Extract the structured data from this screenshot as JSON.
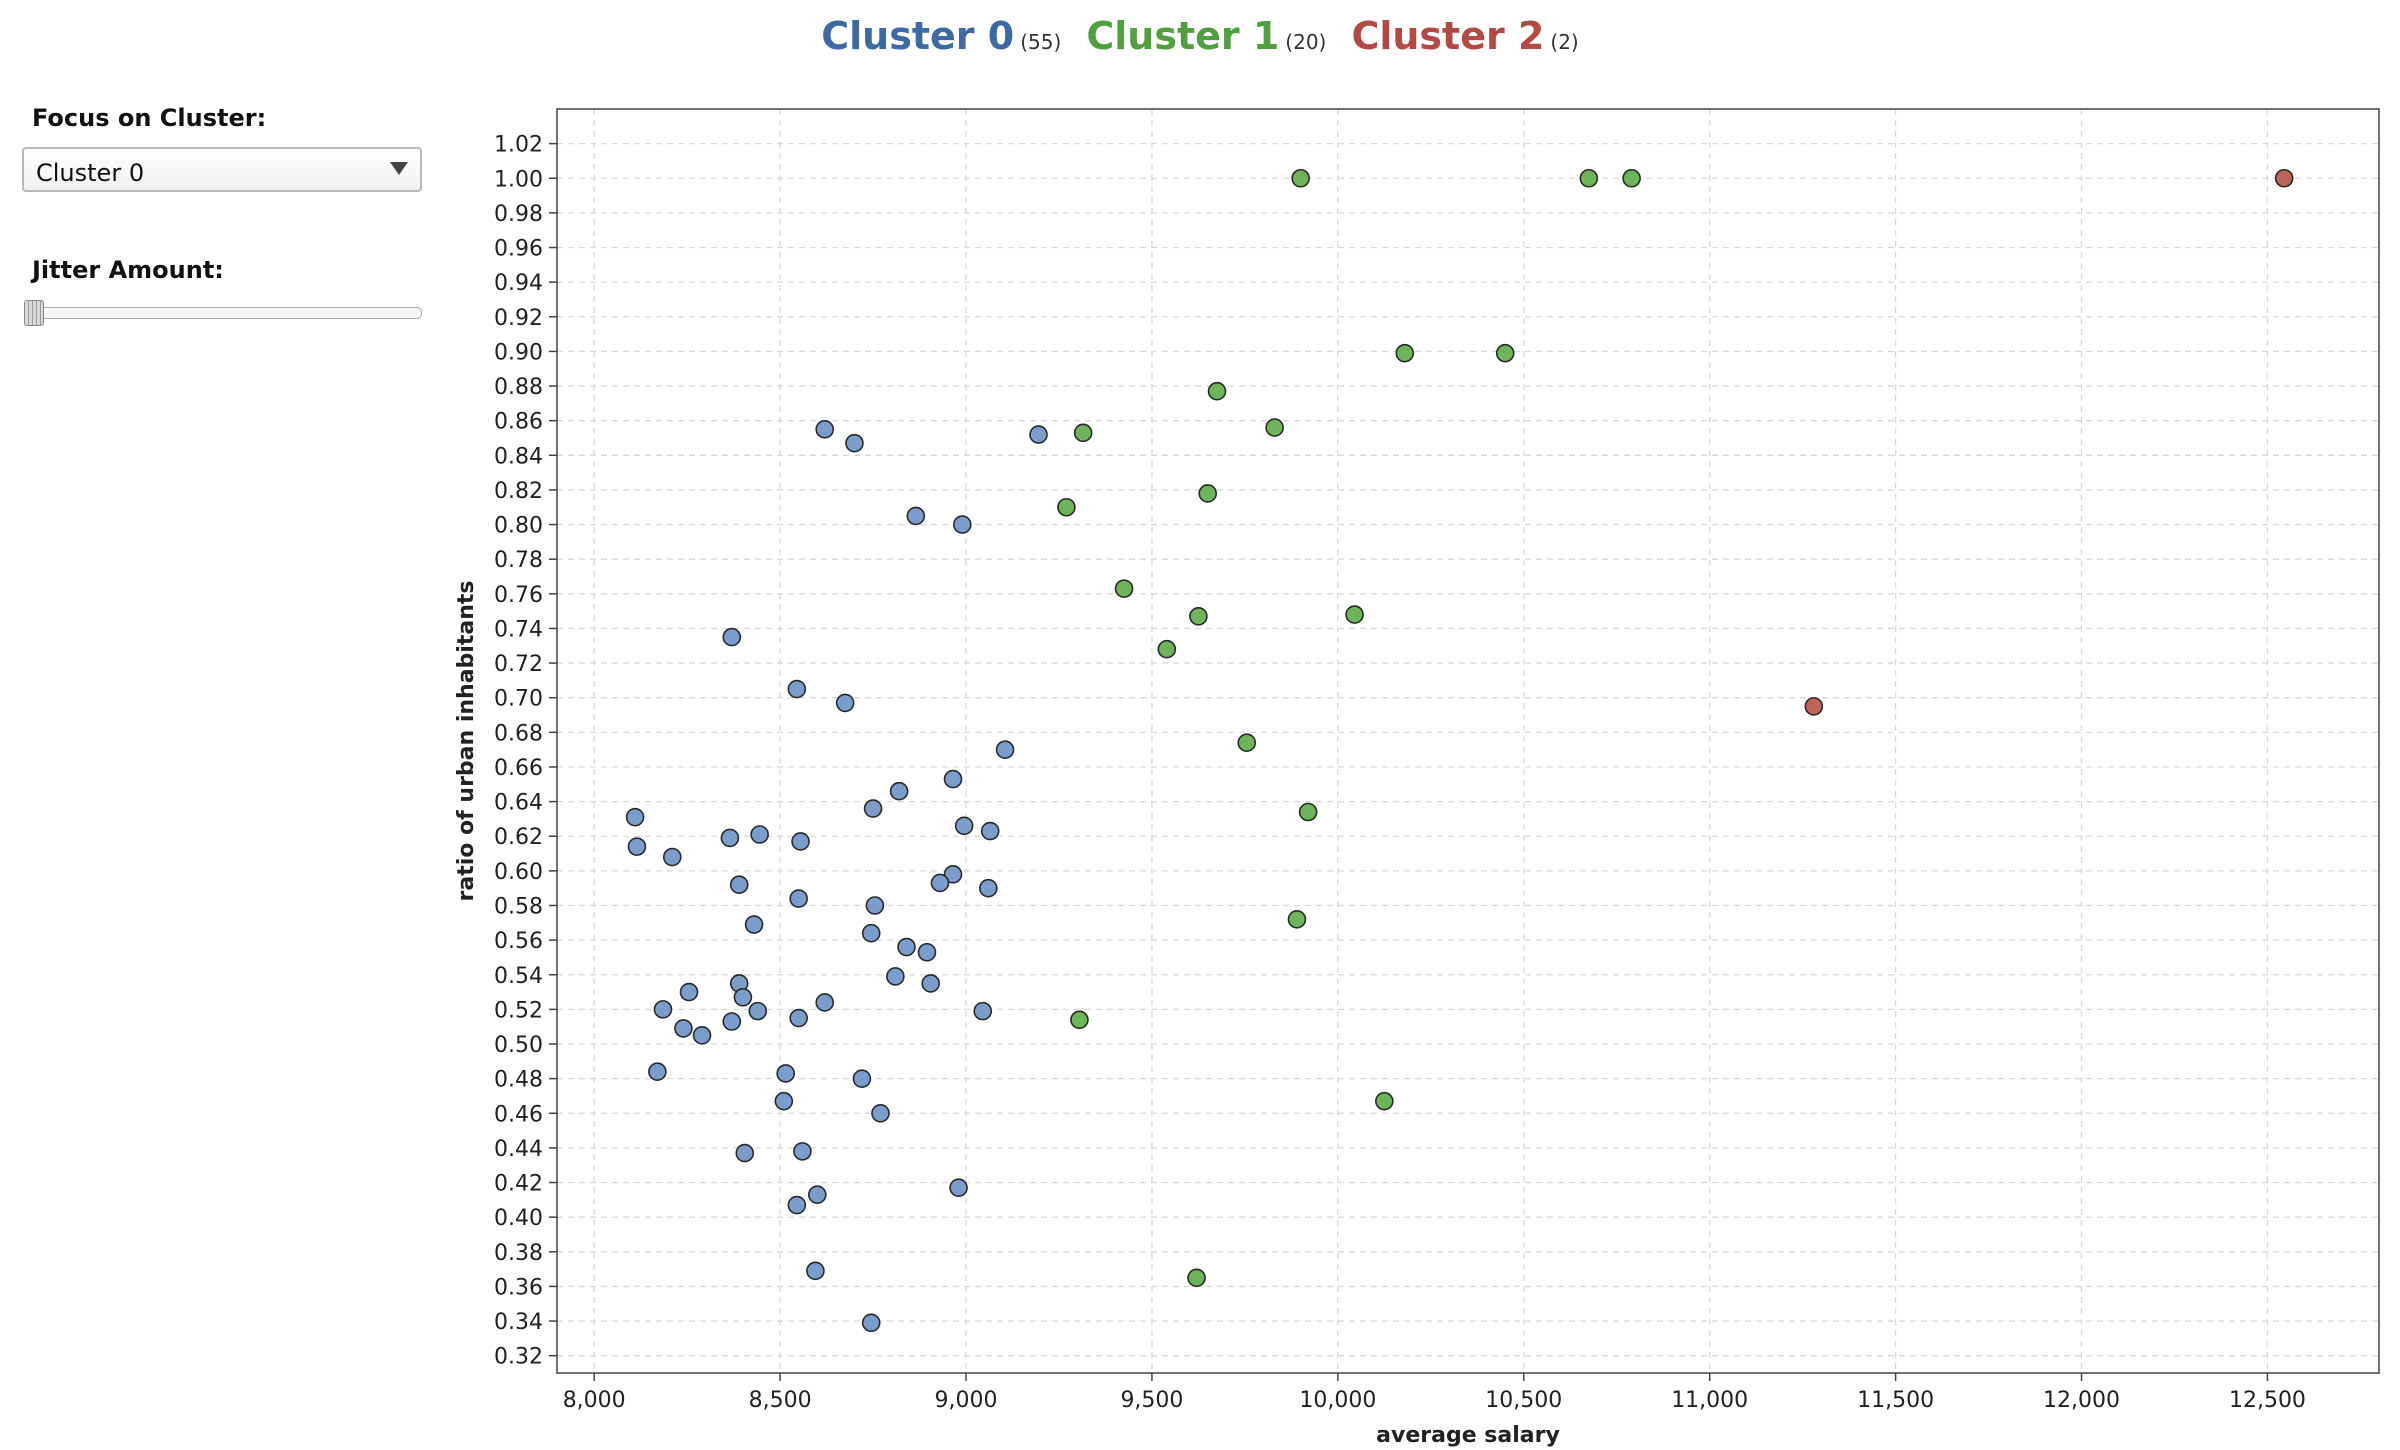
{
  "legend": [
    {
      "name": "Cluster 0",
      "count": "(55)",
      "color": "#3c6aa6"
    },
    {
      "name": "Cluster 1",
      "count": "(20)",
      "color": "#4fa03e"
    },
    {
      "name": "Cluster 2",
      "count": "(2)",
      "color": "#b54a44"
    }
  ],
  "controls": {
    "focus_label": "Focus on Cluster:",
    "focus_value": "Cluster 0",
    "jitter_label": "Jitter Amount:",
    "jitter_value": 0
  },
  "chart_data": {
    "type": "scatter",
    "xlabel": "average salary",
    "ylabel": "ratio of urban inhabitants",
    "xlim": [
      7900,
      12800
    ],
    "ylim": [
      0.31,
      1.04
    ],
    "x_ticks": [
      8000,
      8500,
      9000,
      9500,
      10000,
      10500,
      11000,
      11500,
      12000,
      12500
    ],
    "x_tick_labels": [
      "8,000",
      "8,500",
      "9,000",
      "9,500",
      "10,000",
      "10,500",
      "11,000",
      "11,500",
      "12,000",
      "12,500"
    ],
    "y_ticks": [
      0.32,
      0.34,
      0.36,
      0.38,
      0.4,
      0.42,
      0.44,
      0.46,
      0.48,
      0.5,
      0.52,
      0.54,
      0.56,
      0.58,
      0.6,
      0.62,
      0.64,
      0.66,
      0.68,
      0.7,
      0.72,
      0.74,
      0.76,
      0.78,
      0.8,
      0.82,
      0.84,
      0.86,
      0.88,
      0.9,
      0.92,
      0.94,
      0.96,
      0.98,
      1.0,
      1.02
    ],
    "y_tick_labels": [
      "0.32",
      "0.34",
      "0.36",
      "0.38",
      "0.40",
      "0.42",
      "0.44",
      "0.46",
      "0.48",
      "0.50",
      "0.52",
      "0.54",
      "0.56",
      "0.58",
      "0.60",
      "0.62",
      "0.64",
      "0.66",
      "0.68",
      "0.70",
      "0.72",
      "0.74",
      "0.76",
      "0.78",
      "0.80",
      "0.82",
      "0.84",
      "0.86",
      "0.88",
      "0.90",
      "0.92",
      "0.94",
      "0.96",
      "0.98",
      "1.00",
      "1.02"
    ],
    "grid": true,
    "series": [
      {
        "name": "Cluster 0",
        "color": "#7b9dcc",
        "points": [
          [
            8620,
            0.855
          ],
          [
            8700,
            0.847
          ],
          [
            9195,
            0.852
          ],
          [
            8865,
            0.805
          ],
          [
            8990,
            0.8
          ],
          [
            8370,
            0.735
          ],
          [
            8545,
            0.705
          ],
          [
            8675,
            0.697
          ],
          [
            9105,
            0.67
          ],
          [
            8965,
            0.653
          ],
          [
            8820,
            0.646
          ],
          [
            8750,
            0.636
          ],
          [
            8110,
            0.631
          ],
          [
            8995,
            0.626
          ],
          [
            9065,
            0.623
          ],
          [
            8445,
            0.621
          ],
          [
            8365,
            0.619
          ],
          [
            8555,
            0.617
          ],
          [
            8115,
            0.614
          ],
          [
            8210,
            0.608
          ],
          [
            8965,
            0.598
          ],
          [
            8930,
            0.593
          ],
          [
            8390,
            0.592
          ],
          [
            9060,
            0.59
          ],
          [
            8550,
            0.584
          ],
          [
            8755,
            0.58
          ],
          [
            8430,
            0.569
          ],
          [
            8745,
            0.564
          ],
          [
            8840,
            0.556
          ],
          [
            8895,
            0.553
          ],
          [
            8810,
            0.539
          ],
          [
            8905,
            0.535
          ],
          [
            8390,
            0.535
          ],
          [
            8255,
            0.53
          ],
          [
            8400,
            0.527
          ],
          [
            8620,
            0.524
          ],
          [
            8185,
            0.52
          ],
          [
            8440,
            0.519
          ],
          [
            9045,
            0.519
          ],
          [
            8550,
            0.515
          ],
          [
            8370,
            0.513
          ],
          [
            8240,
            0.509
          ],
          [
            8290,
            0.505
          ],
          [
            8515,
            0.483
          ],
          [
            8720,
            0.48
          ],
          [
            8170,
            0.484
          ],
          [
            8510,
            0.467
          ],
          [
            8770,
            0.46
          ],
          [
            8560,
            0.438
          ],
          [
            8405,
            0.437
          ],
          [
            8980,
            0.417
          ],
          [
            8600,
            0.413
          ],
          [
            8545,
            0.407
          ],
          [
            8595,
            0.369
          ],
          [
            8745,
            0.339
          ]
        ]
      },
      {
        "name": "Cluster 1",
        "color": "#6db558",
        "points": [
          [
            9900,
            1.0
          ],
          [
            10675,
            1.0
          ],
          [
            10790,
            1.0
          ],
          [
            10180,
            0.899
          ],
          [
            10450,
            0.899
          ],
          [
            9675,
            0.877
          ],
          [
            9830,
            0.856
          ],
          [
            9315,
            0.853
          ],
          [
            9650,
            0.818
          ],
          [
            9270,
            0.81
          ],
          [
            9425,
            0.763
          ],
          [
            9625,
            0.747
          ],
          [
            10045,
            0.748
          ],
          [
            9540,
            0.728
          ],
          [
            9755,
            0.674
          ],
          [
            9920,
            0.634
          ],
          [
            9890,
            0.572
          ],
          [
            9305,
            0.514
          ],
          [
            10125,
            0.467
          ],
          [
            9620,
            0.365
          ]
        ]
      },
      {
        "name": "Cluster 2",
        "color": "#c0615a",
        "points": [
          [
            12545,
            1.0
          ],
          [
            11280,
            0.695
          ]
        ]
      }
    ]
  }
}
